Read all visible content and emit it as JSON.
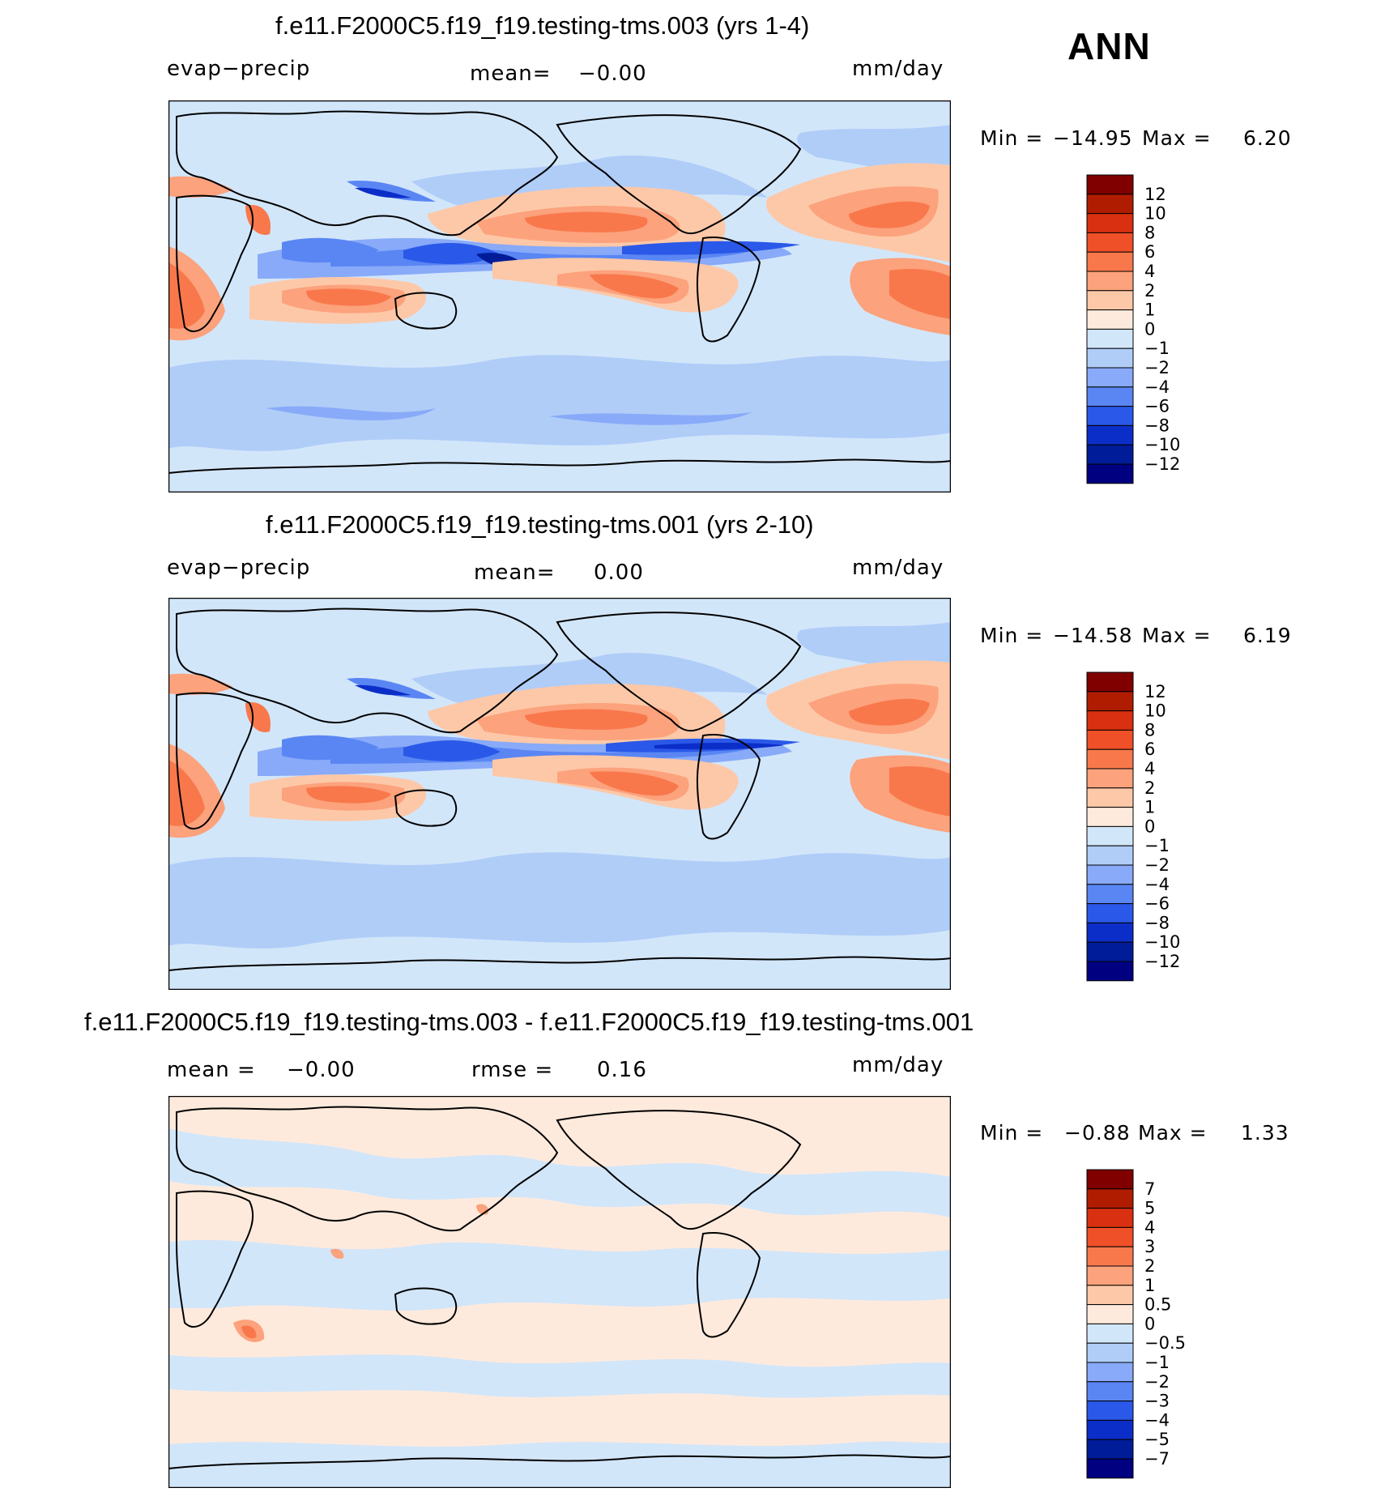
{
  "season": "ANN",
  "units": "mm/day",
  "chart_data": [
    {
      "type": "heatmap",
      "title": "f.e11.F2000C5.f19_f19.testing-tms.003 (yrs 1-4)",
      "variable": "evap−precip",
      "mean_label": "mean=",
      "mean_value": "−0.00",
      "min_label": "Min =",
      "min_value": "−14.95",
      "max_label": "Max =",
      "max_value": "6.20",
      "levels": [
        "12",
        "10",
        "8",
        "6",
        "4",
        "2",
        "1",
        "0",
        "−1",
        "−2",
        "−4",
        "−6",
        "−8",
        "−10",
        "−12"
      ],
      "colors": [
        "#800000",
        "#b01c00",
        "#d83010",
        "#f05028",
        "#f8784c",
        "#fca27c",
        "#fdc8a8",
        "#feeadc",
        "#d2e6fa",
        "#b0cdf8",
        "#88aaf8",
        "#5a86f4",
        "#2a58e8",
        "#0c2ec8",
        "#001c98",
        "#000080"
      ]
    },
    {
      "type": "heatmap",
      "title": "f.e11.F2000C5.f19_f19.testing-tms.001 (yrs 2-10)",
      "variable": "evap−precip",
      "mean_label": "mean=",
      "mean_value": "0.00",
      "min_label": "Min =",
      "min_value": "−14.58",
      "max_label": "Max =",
      "max_value": "6.19",
      "levels": [
        "12",
        "10",
        "8",
        "6",
        "4",
        "2",
        "1",
        "0",
        "−1",
        "−2",
        "−4",
        "−6",
        "−8",
        "−10",
        "−12"
      ],
      "colors": [
        "#800000",
        "#b01c00",
        "#d83010",
        "#f05028",
        "#f8784c",
        "#fca27c",
        "#fdc8a8",
        "#feeadc",
        "#d2e6fa",
        "#b0cdf8",
        "#88aaf8",
        "#5a86f4",
        "#2a58e8",
        "#0c2ec8",
        "#001c98",
        "#000080"
      ]
    },
    {
      "type": "heatmap",
      "title": "f.e11.F2000C5.f19_f19.testing-tms.003 - f.e11.F2000C5.f19_f19.testing-tms.001",
      "mean_label": "mean =",
      "mean_value": "−0.00",
      "rmse_label": "rmse =",
      "rmse_value": "0.16",
      "min_label": "Min =",
      "min_value": "−0.88",
      "max_label": "Max =",
      "max_value": "1.33",
      "levels": [
        "7",
        "5",
        "4",
        "3",
        "2",
        "1",
        "0.5",
        "0",
        "−0.5",
        "−1",
        "−2",
        "−3",
        "−4",
        "−5",
        "−7"
      ],
      "colors": [
        "#800000",
        "#b01c00",
        "#d83010",
        "#f05028",
        "#f8784c",
        "#fca27c",
        "#fdc8a8",
        "#feeadc",
        "#d2e6fa",
        "#b0cdf8",
        "#88aaf8",
        "#5a86f4",
        "#2a58e8",
        "#0c2ec8",
        "#001c98",
        "#000080"
      ]
    }
  ]
}
